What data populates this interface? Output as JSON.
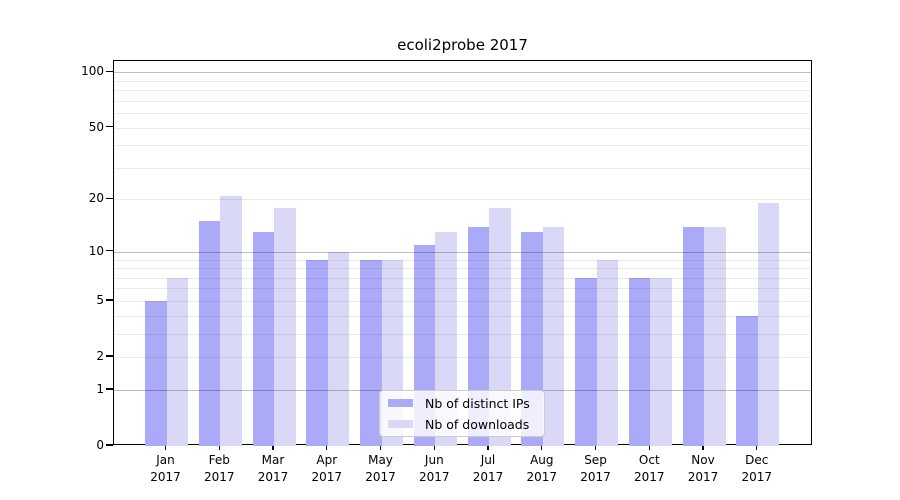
{
  "figure": {
    "title": "ecoli2probe 2017"
  },
  "chart_data": {
    "type": "bar",
    "title": "ecoli2probe 2017",
    "categories": [
      "Jan 2017",
      "Feb 2017",
      "Mar 2017",
      "Apr 2017",
      "May 2017",
      "Jun 2017",
      "Jul 2017",
      "Aug 2017",
      "Sep 2017",
      "Oct 2017",
      "Nov 2017",
      "Dec 2017"
    ],
    "series": [
      {
        "name": "Nb of distinct IPs",
        "color": "#aaaaf8",
        "values": [
          5,
          15,
          13,
          9,
          9,
          11,
          14,
          13,
          7,
          7,
          14,
          4
        ]
      },
      {
        "name": "Nb of downloads",
        "color": "#d9d9f7",
        "values": [
          7,
          21,
          18,
          10,
          9,
          13,
          18,
          14,
          9,
          7,
          14,
          19
        ]
      }
    ],
    "xlabel": "",
    "ylabel": "",
    "yscale": "log10(1+y)",
    "ylim": [
      0,
      115
    ],
    "yticks": [
      0,
      1,
      2,
      5,
      10,
      20,
      50,
      100
    ],
    "ytick_labels": [
      "0",
      "1",
      "2",
      "5",
      "10",
      "20",
      "50",
      "100"
    ],
    "major_gridlines": [
      1,
      10,
      100
    ],
    "minor_gridlines": [
      2,
      3,
      4,
      5,
      6,
      7,
      8,
      9,
      20,
      30,
      40,
      50,
      60,
      70,
      80,
      90
    ],
    "grid": true,
    "legend_position": "lower center",
    "legend": [
      "Nb of distinct IPs",
      "Nb of downloads"
    ]
  },
  "colors": {
    "bar_distinct_ips": "#aaaaf8",
    "bar_downloads": "#d9d9f7",
    "spine": "#000000",
    "grid_major": "rgba(0,0,0,0.25)",
    "grid_minor": "rgba(0,0,0,0.08)",
    "legend_border": "#cccccc"
  }
}
